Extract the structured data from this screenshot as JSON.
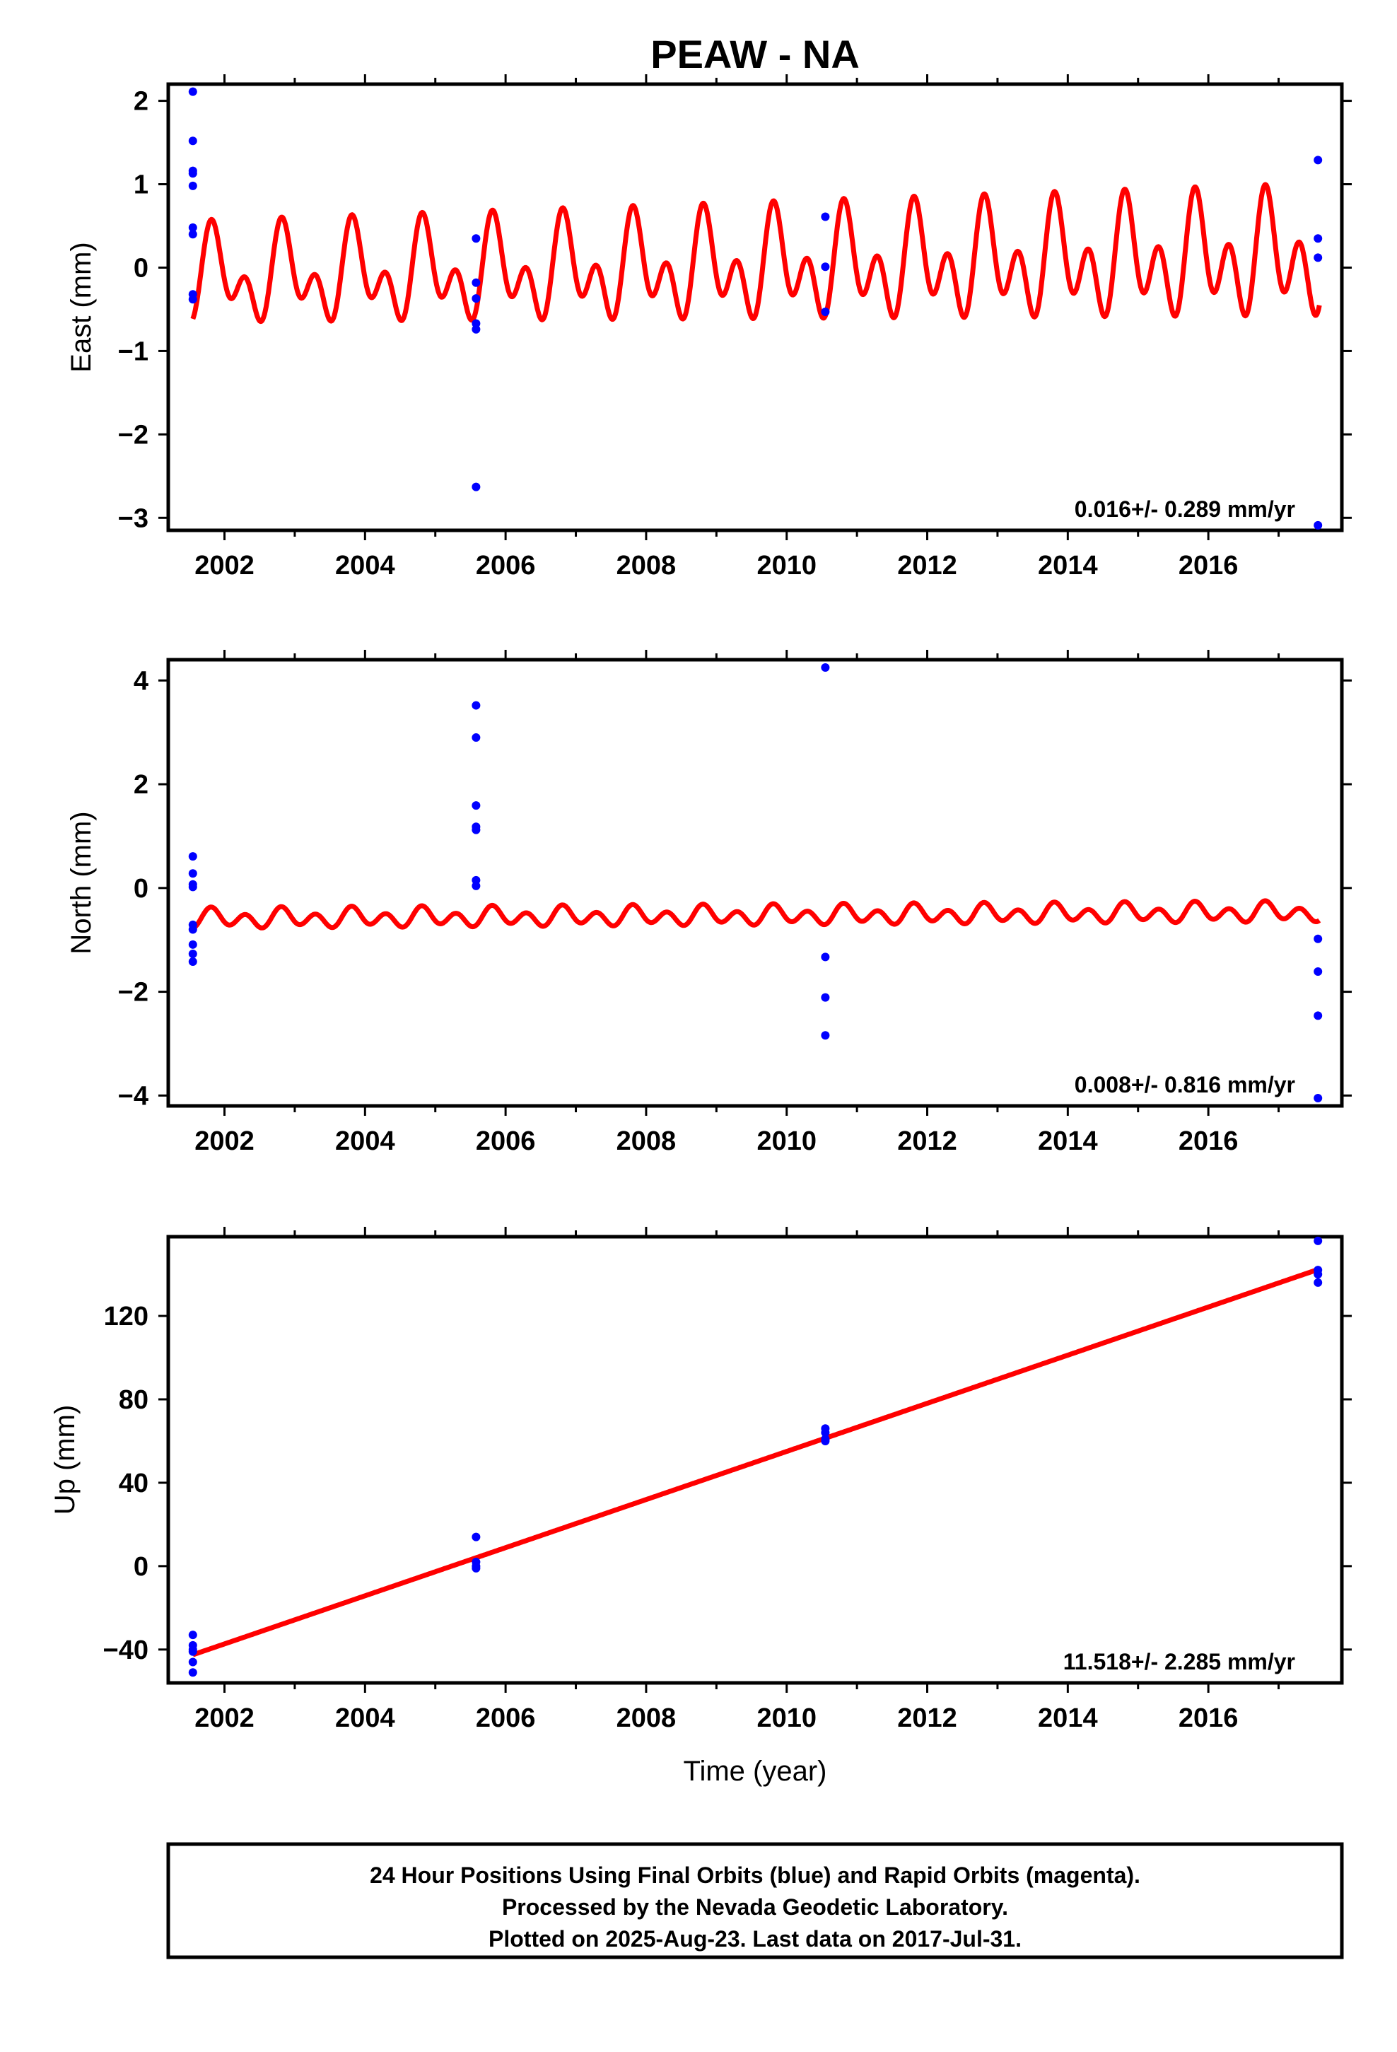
{
  "title": "PEAW - NA",
  "xlabel": "Time (year)",
  "footer": {
    "line1": "24 Hour Positions Using Final Orbits (blue) and Rapid Orbits (magenta).",
    "line2": "Processed by the Nevada Geodetic Laboratory.",
    "line3": "Plotted on 2025-Aug-23. Last data on 2017-Jul-31."
  },
  "colors": {
    "data": "#0000ff",
    "model": "#ff0000"
  },
  "chart_data": [
    {
      "type": "scatter",
      "ylabel": "East (mm)",
      "xlim": [
        2001.2,
        2017.9
      ],
      "ylim": [
        -3.15,
        2.2
      ],
      "xticks": [
        2002,
        2004,
        2006,
        2008,
        2010,
        2012,
        2014,
        2016
      ],
      "yticks": [
        2,
        1,
        0,
        -1,
        -2,
        -3
      ],
      "ytick_labels": [
        "2",
        "1",
        "0",
        "−1",
        "−2",
        "−3"
      ],
      "rate_label": "0.016+/- 0.289 mm/yr",
      "points": [
        [
          2001.55,
          2.11
        ],
        [
          2001.55,
          1.52
        ],
        [
          2001.55,
          1.16
        ],
        [
          2001.55,
          1.13
        ],
        [
          2001.55,
          0.98
        ],
        [
          2001.55,
          0.48
        ],
        [
          2001.55,
          0.4
        ],
        [
          2001.55,
          -0.32
        ],
        [
          2001.55,
          -0.38
        ],
        [
          2005.58,
          0.35
        ],
        [
          2005.58,
          -0.18
        ],
        [
          2005.58,
          -0.37
        ],
        [
          2005.58,
          -0.67
        ],
        [
          2005.58,
          -0.74
        ],
        [
          2005.58,
          -2.63
        ],
        [
          2010.55,
          0.61
        ],
        [
          2010.55,
          0.01
        ],
        [
          2010.55,
          -0.53
        ],
        [
          2017.56,
          1.29
        ],
        [
          2017.56,
          0.35
        ],
        [
          2017.56,
          0.12
        ],
        [
          2017.56,
          -3.09
        ]
      ],
      "model": {
        "offset": 0.0,
        "trend": 0.016,
        "annual_amp": 0.38,
        "semiannual_amp": 0.34,
        "start": 2001.55,
        "end": 2017.58
      }
    },
    {
      "type": "scatter",
      "ylabel": "North (mm)",
      "xlim": [
        2001.2,
        2017.9
      ],
      "ylim": [
        -4.2,
        4.4
      ],
      "xticks": [
        2002,
        2004,
        2006,
        2008,
        2010,
        2012,
        2014,
        2016
      ],
      "yticks": [
        4,
        2,
        0,
        -2,
        -4
      ],
      "ytick_labels": [
        "4",
        "2",
        "0",
        "−2",
        "−4"
      ],
      "rate_label": "0.008+/- 0.816 mm/yr",
      "points": [
        [
          2001.55,
          0.61
        ],
        [
          2001.55,
          0.28
        ],
        [
          2001.55,
          0.07
        ],
        [
          2001.55,
          0.02
        ],
        [
          2001.55,
          -0.71
        ],
        [
          2001.55,
          -0.8
        ],
        [
          2001.55,
          -1.09
        ],
        [
          2001.55,
          -1.27
        ],
        [
          2001.55,
          -1.42
        ],
        [
          2005.58,
          3.52
        ],
        [
          2005.58,
          2.9
        ],
        [
          2005.58,
          1.59
        ],
        [
          2005.58,
          1.18
        ],
        [
          2005.58,
          1.12
        ],
        [
          2005.58,
          0.15
        ],
        [
          2005.58,
          0.04
        ],
        [
          2010.55,
          4.25
        ],
        [
          2010.55,
          -1.33
        ],
        [
          2010.55,
          -2.11
        ],
        [
          2010.55,
          -2.84
        ],
        [
          2017.56,
          -0.98
        ],
        [
          2017.56,
          -1.61
        ],
        [
          2017.56,
          -2.46
        ],
        [
          2017.56,
          -4.05
        ]
      ],
      "model": {
        "offset": -0.53,
        "trend": 0.008,
        "annual_amp": 0.08,
        "semiannual_amp": 0.15,
        "start": 2001.55,
        "end": 2017.58
      }
    },
    {
      "type": "scatter",
      "ylabel": "Up (mm)",
      "xlim": [
        2001.2,
        2017.9
      ],
      "ylim": [
        -56,
        158
      ],
      "xticks": [
        2002,
        2004,
        2006,
        2008,
        2010,
        2012,
        2014,
        2016
      ],
      "yticks": [
        120,
        80,
        40,
        0,
        -40
      ],
      "ytick_labels": [
        "120",
        "80",
        "40",
        "0",
        "−40"
      ],
      "rate_label": "11.518+/- 2.285 mm/yr",
      "points": [
        [
          2001.55,
          -33
        ],
        [
          2001.55,
          -38
        ],
        [
          2001.55,
          -40
        ],
        [
          2001.55,
          -41
        ],
        [
          2001.55,
          -46
        ],
        [
          2001.55,
          -51
        ],
        [
          2005.58,
          14
        ],
        [
          2005.58,
          2
        ],
        [
          2005.58,
          0
        ],
        [
          2005.58,
          -1
        ],
        [
          2010.55,
          66
        ],
        [
          2010.55,
          64
        ],
        [
          2010.55,
          61
        ],
        [
          2010.55,
          60
        ],
        [
          2017.56,
          156
        ],
        [
          2017.56,
          142
        ],
        [
          2017.56,
          140
        ],
        [
          2017.56,
          136
        ]
      ],
      "model": {
        "start": 2001.55,
        "end": 2017.58,
        "y_start": -42.5,
        "y_end": 142.5
      }
    }
  ]
}
